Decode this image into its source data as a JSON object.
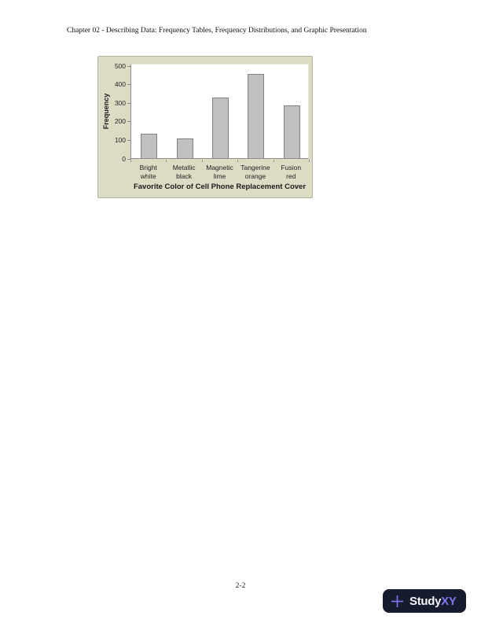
{
  "header": {
    "title": "Chapter 02 - Describing Data: Frequency Tables, Frequency Distributions, and Graphic Presentation"
  },
  "chart_data": {
    "type": "bar",
    "categories": [
      "Bright\nwhite",
      "Metallic\nblack",
      "Magnetic\nlime",
      "Tangerine\norange",
      "Fusion\nred"
    ],
    "values": [
      130,
      104,
      325,
      455,
      286
    ],
    "title": "",
    "xlabel": "Favorite Color of Cell Phone Replacement Cover",
    "ylabel": "Frequency",
    "ylim": [
      0,
      500
    ],
    "yticks": [
      0,
      100,
      200,
      300,
      400,
      500
    ],
    "grid": false,
    "legend": false,
    "colors": {
      "chart_background": "#dcdbc4",
      "plot_background": "#ffffff",
      "bar_fill": "#c0c0c0",
      "bar_border": "#808080",
      "axis_line": "#8c8c8c"
    }
  },
  "footer": {
    "page_number": "2-2"
  },
  "logo": {
    "text_primary": "Study",
    "text_accent": "XY",
    "background_color": "#161b2e",
    "accent_color": "#8175f0"
  }
}
